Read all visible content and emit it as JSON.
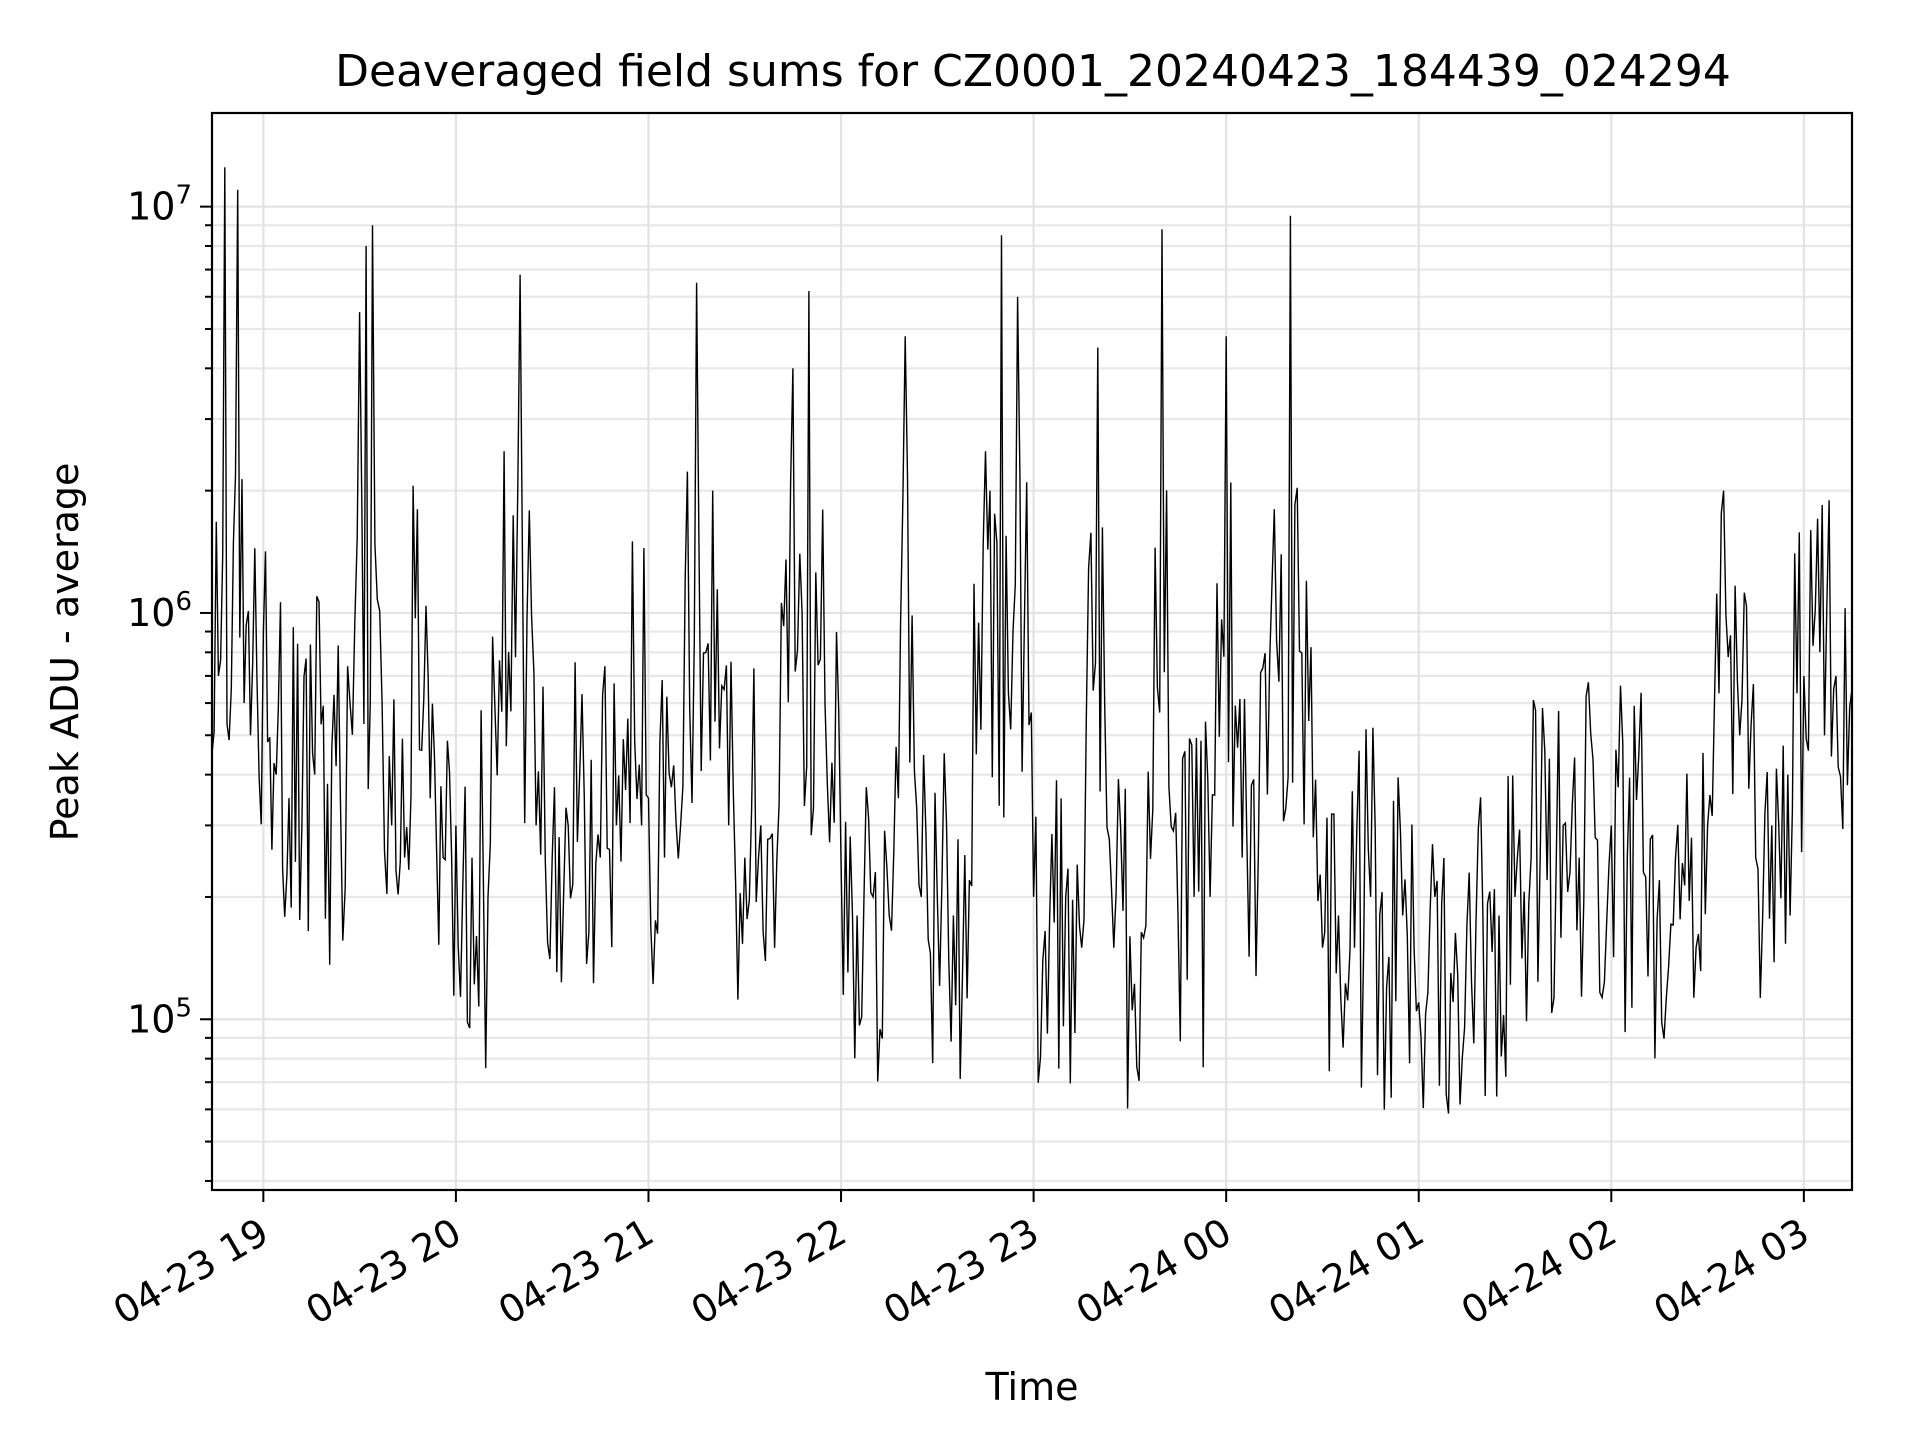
{
  "chart_data": {
    "type": "line",
    "title": "Deaveraged field sums for CZ0001_20240423_184439_024294",
    "xlabel": "Time",
    "ylabel": "Peak ADU - average",
    "yscale": "log",
    "ylim": [
      38000,
      17000000
    ],
    "xlim": [
      "2024-04-23 18:44",
      "2024-04-24 03:15"
    ],
    "grid": "on (major and minor)",
    "x_ticks": [
      {
        "label": "04-23 19",
        "time": "2024-04-23 19:00"
      },
      {
        "label": "04-23 20",
        "time": "2024-04-23 20:00"
      },
      {
        "label": "04-23 21",
        "time": "2024-04-23 21:00"
      },
      {
        "label": "04-23 22",
        "time": "2024-04-23 22:00"
      },
      {
        "label": "04-23 23",
        "time": "2024-04-23 23:00"
      },
      {
        "label": "04-24 00",
        "time": "2024-04-24 00:00"
      },
      {
        "label": "04-24 01",
        "time": "2024-04-24 01:00"
      },
      {
        "label": "04-24 02",
        "time": "2024-04-24 02:00"
      },
      {
        "label": "04-24 03",
        "time": "2024-04-24 03:00"
      }
    ],
    "y_ticks": [
      {
        "base": "10",
        "exp": "5",
        "value": 100000
      },
      {
        "base": "10",
        "exp": "6",
        "value": 1000000
      },
      {
        "base": "10",
        "exp": "7",
        "value": 10000000
      }
    ],
    "series": [
      {
        "x": [
          "2024-04-23 18:44",
          "2024-04-23 18:46",
          "2024-04-23 18:48",
          "2024-04-23 18:50",
          "2024-04-23 18:52",
          "2024-04-23 18:54",
          "2024-04-23 18:56",
          "2024-04-23 18:58",
          "2024-04-23 19:00",
          "2024-04-23 19:04",
          "2024-04-23 19:08",
          "2024-04-23 19:12",
          "2024-04-23 19:16",
          "2024-04-23 19:20",
          "2024-04-23 19:24",
          "2024-04-23 19:27",
          "2024-04-23 19:30",
          "2024-04-23 19:32",
          "2024-04-23 19:34",
          "2024-04-23 19:37",
          "2024-04-23 19:40",
          "2024-04-23 19:44",
          "2024-04-23 19:48",
          "2024-04-23 19:52",
          "2024-04-23 19:56",
          "2024-04-23 20:00",
          "2024-04-23 20:05",
          "2024-04-23 20:10",
          "2024-04-23 20:15",
          "2024-04-23 20:20",
          "2024-04-23 20:25",
          "2024-04-23 20:30",
          "2024-04-23 20:35",
          "2024-04-23 20:40",
          "2024-04-23 20:45",
          "2024-04-23 20:50",
          "2024-04-23 20:55",
          "2024-04-23 21:00",
          "2024-04-23 21:05",
          "2024-04-23 21:10",
          "2024-04-23 21:15",
          "2024-04-23 21:20",
          "2024-04-23 21:25",
          "2024-04-23 21:30",
          "2024-04-23 21:35",
          "2024-04-23 21:40",
          "2024-04-23 21:45",
          "2024-04-23 21:50",
          "2024-04-23 21:55",
          "2024-04-23 22:00",
          "2024-04-23 22:05",
          "2024-04-23 22:10",
          "2024-04-23 22:15",
          "2024-04-23 22:20",
          "2024-04-23 22:25",
          "2024-04-23 22:30",
          "2024-04-23 22:35",
          "2024-04-23 22:40",
          "2024-04-23 22:45",
          "2024-04-23 22:50",
          "2024-04-23 22:55",
          "2024-04-23 23:00",
          "2024-04-23 23:05",
          "2024-04-23 23:10",
          "2024-04-23 23:15",
          "2024-04-23 23:20",
          "2024-04-23 23:25",
          "2024-04-23 23:30",
          "2024-04-23 23:35",
          "2024-04-23 23:40",
          "2024-04-23 23:45",
          "2024-04-23 23:50",
          "2024-04-23 23:55",
          "2024-04-24 00:00",
          "2024-04-24 00:05",
          "2024-04-24 00:10",
          "2024-04-24 00:15",
          "2024-04-24 00:20",
          "2024-04-24 00:25",
          "2024-04-24 00:30",
          "2024-04-24 00:35",
          "2024-04-24 00:40",
          "2024-04-24 00:45",
          "2024-04-24 00:50",
          "2024-04-24 00:55",
          "2024-04-24 01:00",
          "2024-04-24 01:05",
          "2024-04-24 01:10",
          "2024-04-24 01:15",
          "2024-04-24 01:20",
          "2024-04-24 01:25",
          "2024-04-24 01:30",
          "2024-04-24 01:35",
          "2024-04-24 01:40",
          "2024-04-24 01:45",
          "2024-04-24 01:50",
          "2024-04-24 01:55",
          "2024-04-24 02:00",
          "2024-04-24 02:05",
          "2024-04-24 02:10",
          "2024-04-24 02:15",
          "2024-04-24 02:20",
          "2024-04-24 02:25",
          "2024-04-24 02:30",
          "2024-04-24 02:35",
          "2024-04-24 02:40",
          "2024-04-24 02:45",
          "2024-04-24 02:50",
          "2024-04-24 02:55",
          "2024-04-24 03:00",
          "2024-04-24 03:05",
          "2024-04-24 03:10",
          "2024-04-24 03:15"
        ],
        "y": [
          450000,
          700000,
          12500000,
          650000,
          11000000,
          600000,
          500000,
          700000,
          900000,
          400000,
          350000,
          300000,
          400000,
          380000,
          350000,
          600000,
          5500000,
          8000000,
          9000000,
          600000,
          300000,
          250000,
          1800000,
          350000,
          250000,
          300000,
          250000,
          200000,
          2500000,
          6800000,
          300000,
          250000,
          300000,
          350000,
          250000,
          300000,
          1500000,
          350000,
          250000,
          300000,
          6500000,
          2000000,
          300000,
          250000,
          300000,
          250000,
          4000000,
          6200000,
          600000,
          250000,
          180000,
          200000,
          180000,
          4800000,
          200000,
          200000,
          180000,
          220000,
          2500000,
          8500000,
          6000000,
          200000,
          180000,
          200000,
          150000,
          4500000,
          150000,
          160000,
          170000,
          8800000,
          180000,
          200000,
          200000,
          4800000,
          250000,
          250000,
          1800000,
          9500000,
          1200000,
          150000,
          180000,
          150000,
          200000,
          120000,
          180000,
          110000,
          200000,
          130000,
          170000,
          180000,
          180000,
          200000,
          250000,
          220000,
          300000,
          250000,
          280000,
          300000,
          250000,
          230000,
          220000,
          250000,
          280000,
          300000,
          2000000,
          500000,
          250000,
          300000,
          400000,
          700000,
          800000,
          700000,
          650000
        ]
      }
    ]
  }
}
